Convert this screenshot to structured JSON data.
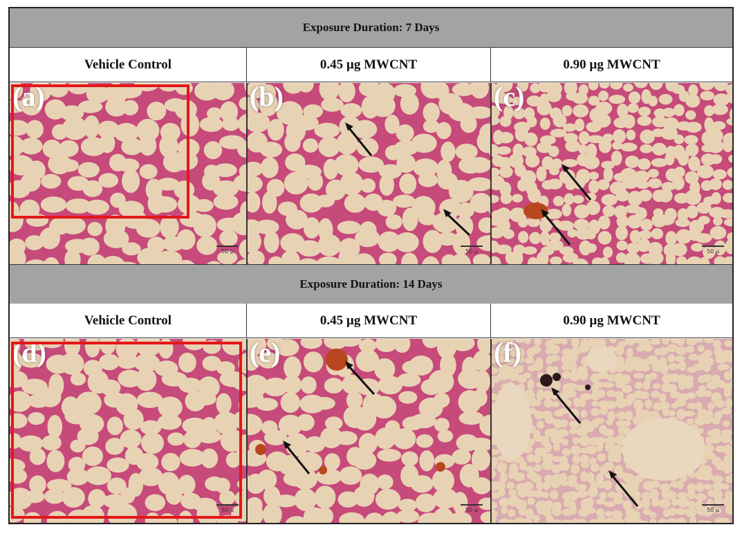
{
  "figure": {
    "row1": {
      "banner": "Exposure Duration: 7 Days",
      "headers": [
        "Vehicle Control",
        "0.45 µg MWCNT",
        "0.90 µg MWCNT"
      ],
      "panels": [
        {
          "label": "(a)",
          "scale": "50 µ"
        },
        {
          "label": "(b)",
          "scale": "50 µ"
        },
        {
          "label": "(c)",
          "scale": "50 µ"
        }
      ]
    },
    "row2": {
      "banner": "Exposure Duration: 14 Days",
      "headers": [
        "Vehicle Control",
        "0.45 µg MWCNT",
        "0.90 µg MWCNT"
      ],
      "panels": [
        {
          "label": "(d)",
          "scale": "50 µ"
        },
        {
          "label": "(e)",
          "scale": "50 µ"
        },
        {
          "label": "(f)",
          "scale": "50 µ"
        }
      ]
    },
    "colors": {
      "banner_bg": "#a3a3a3",
      "tissue_bg": "#e8d2b4",
      "tissue_wall": "#c64a7a",
      "highlight_box": "#e3171a",
      "particle": "#b8471f"
    },
    "highlighted_panels": [
      "(a)",
      "(d)"
    ],
    "arrow_icon": "arrow-icon"
  }
}
